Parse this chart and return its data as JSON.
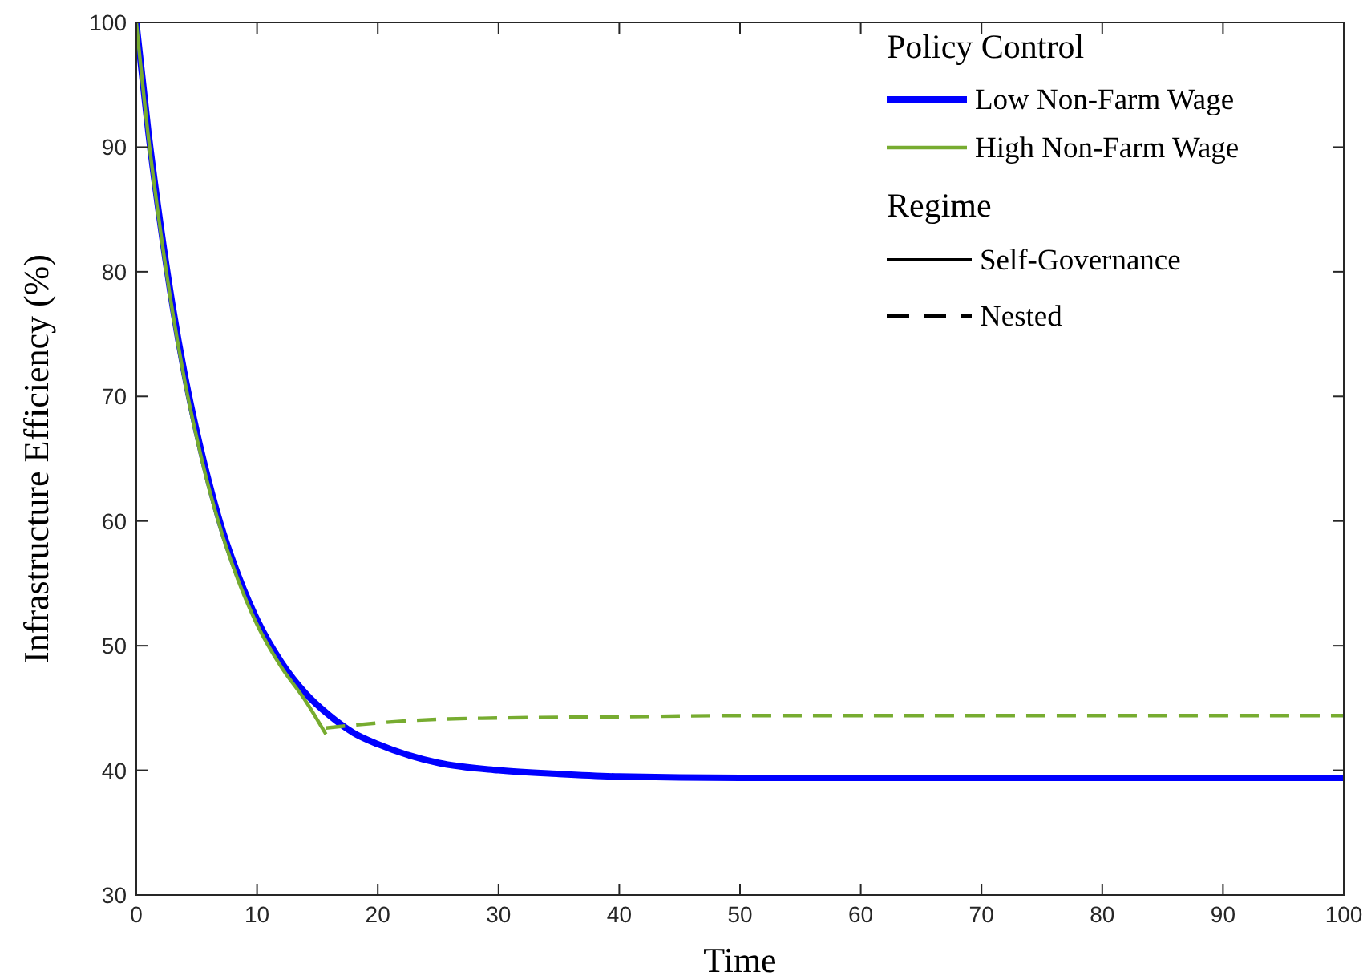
{
  "chart_data": {
    "type": "line",
    "xlabel": "Time",
    "ylabel": "Infrastructure Efficiency (%)",
    "legend_title": "Policy Control",
    "legend": "top right",
    "grid": false,
    "xlim": [
      0,
      100
    ],
    "xticks": [
      0,
      10,
      20,
      30,
      40,
      50,
      60,
      70,
      80,
      90,
      100
    ],
    "ylim": [
      30,
      100
    ],
    "yticks": [
      30,
      40,
      50,
      60,
      70,
      80,
      90,
      100
    ],
    "annotations": [
      "Regime",
      "Self-Governance",
      "Nested"
    ],
    "series": [
      {
        "name": "Low Non-Farm Wage",
        "color": "#0000ff",
        "line_style": "solid",
        "x": [
          0,
          1,
          2,
          3,
          4,
          5,
          6,
          7,
          8,
          10,
          12,
          14,
          16,
          18,
          20,
          25,
          30,
          35,
          40,
          50,
          60,
          70,
          80,
          90,
          100
        ],
        "values": [
          100,
          91.2,
          83.8,
          77.3,
          71.8,
          67.2,
          63.2,
          59.7,
          56.8,
          52.1,
          48.7,
          46.2,
          44.4,
          43.0,
          42.1,
          40.6,
          40.0,
          39.7,
          39.5,
          39.4,
          39.4,
          39.4,
          39.4,
          39.4,
          39.4
        ]
      },
      {
        "name": "High Non-Farm Wage",
        "color": "#77ac30",
        "line_style": "solid",
        "x": [
          0,
          1,
          2,
          3,
          4,
          5,
          6,
          7,
          8,
          10,
          12,
          14,
          15.7
        ],
        "values": [
          100,
          90.8,
          83.3,
          76.8,
          71.3,
          66.7,
          62.7,
          59.3,
          56.4,
          51.7,
          48.3,
          45.6,
          42.9
        ]
      },
      {
        "color": "#77ac30",
        "line_style": "dashed",
        "x": [
          15.7,
          20,
          25,
          30,
          40,
          50,
          60,
          70,
          80,
          90,
          100
        ],
        "values": [
          43.4,
          43.8,
          44.1,
          44.2,
          44.3,
          44.4,
          44.4,
          44.4,
          44.4,
          44.4,
          44.4
        ]
      }
    ]
  }
}
